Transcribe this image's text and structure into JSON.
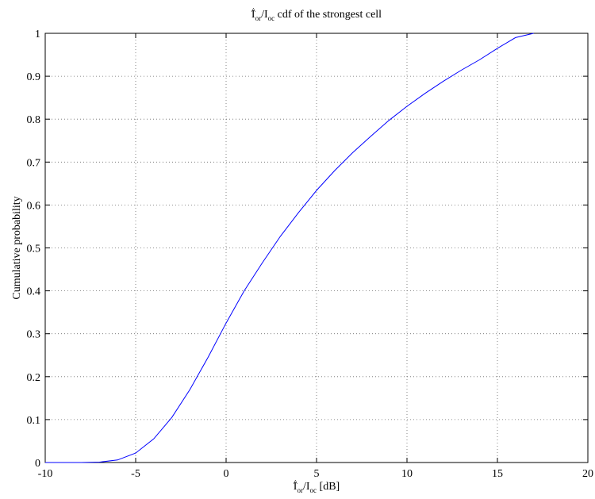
{
  "chart_data": {
    "type": "line",
    "title": {
      "main": "I",
      "hat": "^",
      "sub1": "or",
      "sep": "/I",
      "sub2": "oc",
      "rest": " cdf of the strongest cell"
    },
    "xlabel": {
      "main": "I",
      "hat": "^",
      "sub1": "or",
      "sep": "/I",
      "sub2": "oc",
      "rest": " [dB]"
    },
    "ylabel": "Cumulative probability",
    "xlim": [
      -10,
      20
    ],
    "ylim": [
      0,
      1
    ],
    "xticks": [
      "-10",
      "-5",
      "0",
      "5",
      "10",
      "15",
      "20"
    ],
    "yticks": [
      "0",
      "0.1",
      "0.2",
      "0.3",
      "0.4",
      "0.5",
      "0.6",
      "0.7",
      "0.8",
      "0.9",
      "1"
    ],
    "grid": true,
    "legend": "none",
    "series": [
      {
        "color": "#0000ff",
        "x": [
          -10,
          -9,
          -8,
          -7,
          -6,
          -5,
          -4,
          -3,
          -2,
          -1,
          0,
          1,
          2,
          3,
          4,
          5,
          6,
          7,
          8,
          9,
          10,
          11,
          12,
          13,
          14,
          15,
          16,
          17
        ],
        "y": [
          0,
          0,
          0,
          0.001,
          0.006,
          0.022,
          0.055,
          0.105,
          0.17,
          0.245,
          0.325,
          0.4,
          0.465,
          0.527,
          0.582,
          0.634,
          0.68,
          0.722,
          0.76,
          0.797,
          0.83,
          0.86,
          0.888,
          0.914,
          0.938,
          0.965,
          0.99,
          1.0
        ]
      }
    ]
  }
}
